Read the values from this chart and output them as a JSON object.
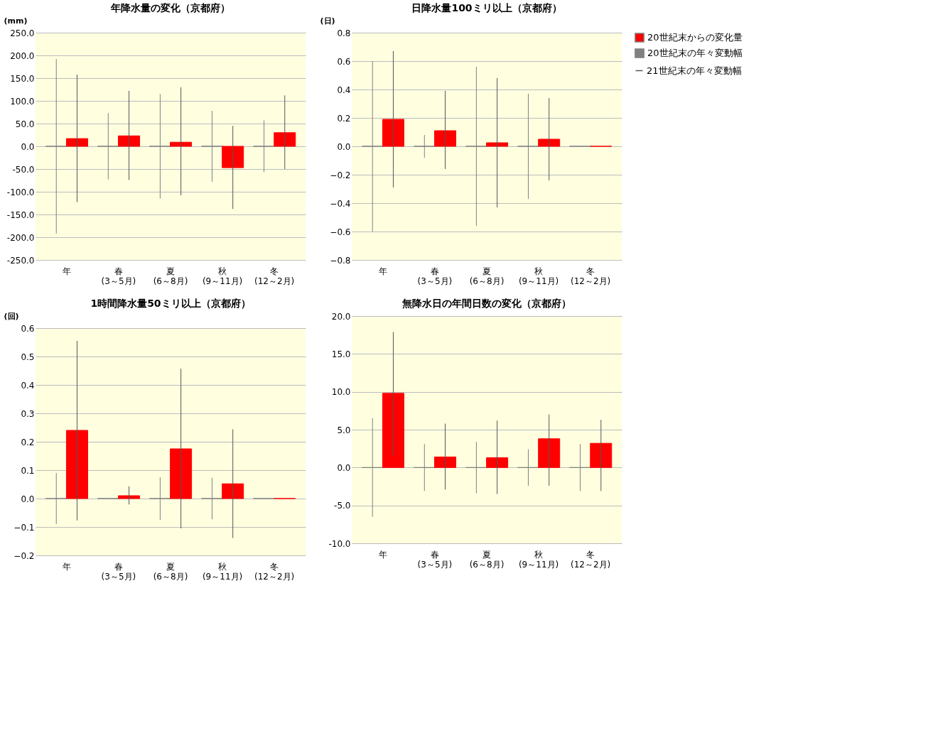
{
  "chart_data": [
    {
      "type": "bar",
      "title": "年降水量の変化（京都府）",
      "ylabel": "(mm)",
      "categories": [
        "年",
        "春\n(3～5月)",
        "夏\n(6～8月)",
        "秋\n(9～11月)",
        "冬\n(12～2月)"
      ],
      "ylim": [
        -250,
        250
      ],
      "yticks": [
        {
          "value": -250,
          "label": "-250.0"
        },
        {
          "value": -200,
          "label": "-200.0"
        },
        {
          "value": -150,
          "label": "-150.0"
        },
        {
          "value": -100,
          "label": "-100.0"
        },
        {
          "value": -50,
          "label": "-50.0"
        },
        {
          "value": 0,
          "label": "0.0"
        },
        {
          "value": 50,
          "label": "50.0"
        },
        {
          "value": 100,
          "label": "100.0"
        },
        {
          "value": 150,
          "label": "150.0"
        },
        {
          "value": 200,
          "label": "200.0"
        },
        {
          "value": 250,
          "label": "250.0"
        }
      ],
      "grid": "y",
      "legend": "right",
      "annotations": [
        "21世紀末の年々変動幅"
      ],
      "series": [
        {
          "name": "20世紀末の年々変動幅",
          "color": "#808080",
          "values": [
            0,
            0,
            0,
            0,
            0
          ],
          "errors": [
            192,
            73,
            115,
            78,
            57
          ]
        },
        {
          "name": "20世紀末からの変化量",
          "color": "#ff0000",
          "values": [
            17,
            23,
            9,
            -47,
            30
          ],
          "errors": [
            [
              -123,
              158
            ],
            [
              -74,
              122
            ],
            [
              -108,
              130
            ],
            [
              -138,
              45
            ],
            [
              -50,
              112
            ]
          ]
        }
      ]
    },
    {
      "type": "bar",
      "title": "日降水量100ミリ以上（京都府）",
      "ylabel": "(日)",
      "categories": [
        "年",
        "春\n(3～5月)",
        "夏\n(6～8月)",
        "秋\n(9～11月)",
        "冬\n(12～2月)"
      ],
      "ylim": [
        -0.8,
        0.8
      ],
      "yticks": [
        -0.8,
        -0.6,
        -0.4,
        -0.2,
        {
          "value": 0,
          "label": "0.0"
        },
        0.2,
        0.4,
        0.6,
        0.8
      ],
      "grid": "y",
      "series": [
        {
          "color": "#808080",
          "values": [
            0,
            0,
            0,
            0,
            0
          ],
          "errors": [
            0.6,
            0.08,
            0.56,
            0.37,
            null
          ]
        },
        {
          "color": "#ff0000",
          "values": [
            0.19,
            0.11,
            0.025,
            0.05,
            0
          ],
          "errors": [
            [
              -0.29,
              0.67
            ],
            [
              -0.16,
              0.39
            ],
            [
              -0.43,
              0.48
            ],
            [
              -0.24,
              0.34
            ],
            null
          ]
        }
      ]
    },
    {
      "type": "bar",
      "title": "1時間降水量50ミリ以上（京都府）",
      "ylabel": "(回)",
      "categories": [
        "年",
        "春\n(3～5月)",
        "夏\n(6～8月)",
        "秋\n(9～11月)",
        "冬\n(12～2月)"
      ],
      "ylim": [
        -0.2,
        0.6
      ],
      "yticks": [
        -0.2,
        -0.1,
        {
          "value": 0,
          "label": "0.0"
        },
        0.1,
        0.2,
        0.3,
        0.4,
        0.5,
        0.6
      ],
      "grid": "y",
      "series": [
        {
          "color": "#808080",
          "values": [
            0,
            0,
            0,
            0,
            0
          ],
          "errors": [
            0.09,
            null,
            0.075,
            0.073,
            null
          ]
        },
        {
          "color": "#ff0000",
          "values": [
            0.24,
            0.01,
            0.175,
            0.052,
            0
          ],
          "errors": [
            [
              -0.077,
              0.555
            ],
            [
              -0.021,
              0.043
            ],
            [
              -0.105,
              0.457
            ],
            [
              -0.139,
              0.244
            ],
            null
          ]
        }
      ]
    },
    {
      "type": "bar",
      "title": "無降水日の年間日数の変化（京都府）",
      "categories": [
        "年",
        "春\n(3～5月)",
        "夏\n(6～8月)",
        "秋\n(9～11月)",
        "冬\n(12～2月)"
      ],
      "ylim": [
        -10,
        20
      ],
      "yticks": [
        {
          "value": -10,
          "label": "-10.0"
        },
        {
          "value": -5,
          "label": "-5.0"
        },
        {
          "value": 0,
          "label": "0.0"
        },
        {
          "value": 5,
          "label": "5.0"
        },
        {
          "value": 10,
          "label": "10.0"
        },
        {
          "value": 15,
          "label": "15.0"
        },
        {
          "value": 20,
          "label": "20.0"
        }
      ],
      "grid": "y",
      "series": [
        {
          "color": "#808080",
          "values": [
            0,
            0,
            0,
            0,
            0
          ],
          "errors": [
            6.5,
            3.1,
            3.4,
            2.4,
            3.1
          ]
        },
        {
          "color": "#ff0000",
          "values": [
            9.8,
            1.4,
            1.3,
            3.8,
            3.2
          ],
          "errors": [
            [
              1.6,
              17.9
            ],
            [
              -2.9,
              5.8
            ],
            [
              -3.5,
              6.2
            ],
            [
              -2.4,
              7.0
            ],
            [
              -3.1,
              6.3
            ]
          ]
        }
      ]
    }
  ]
}
